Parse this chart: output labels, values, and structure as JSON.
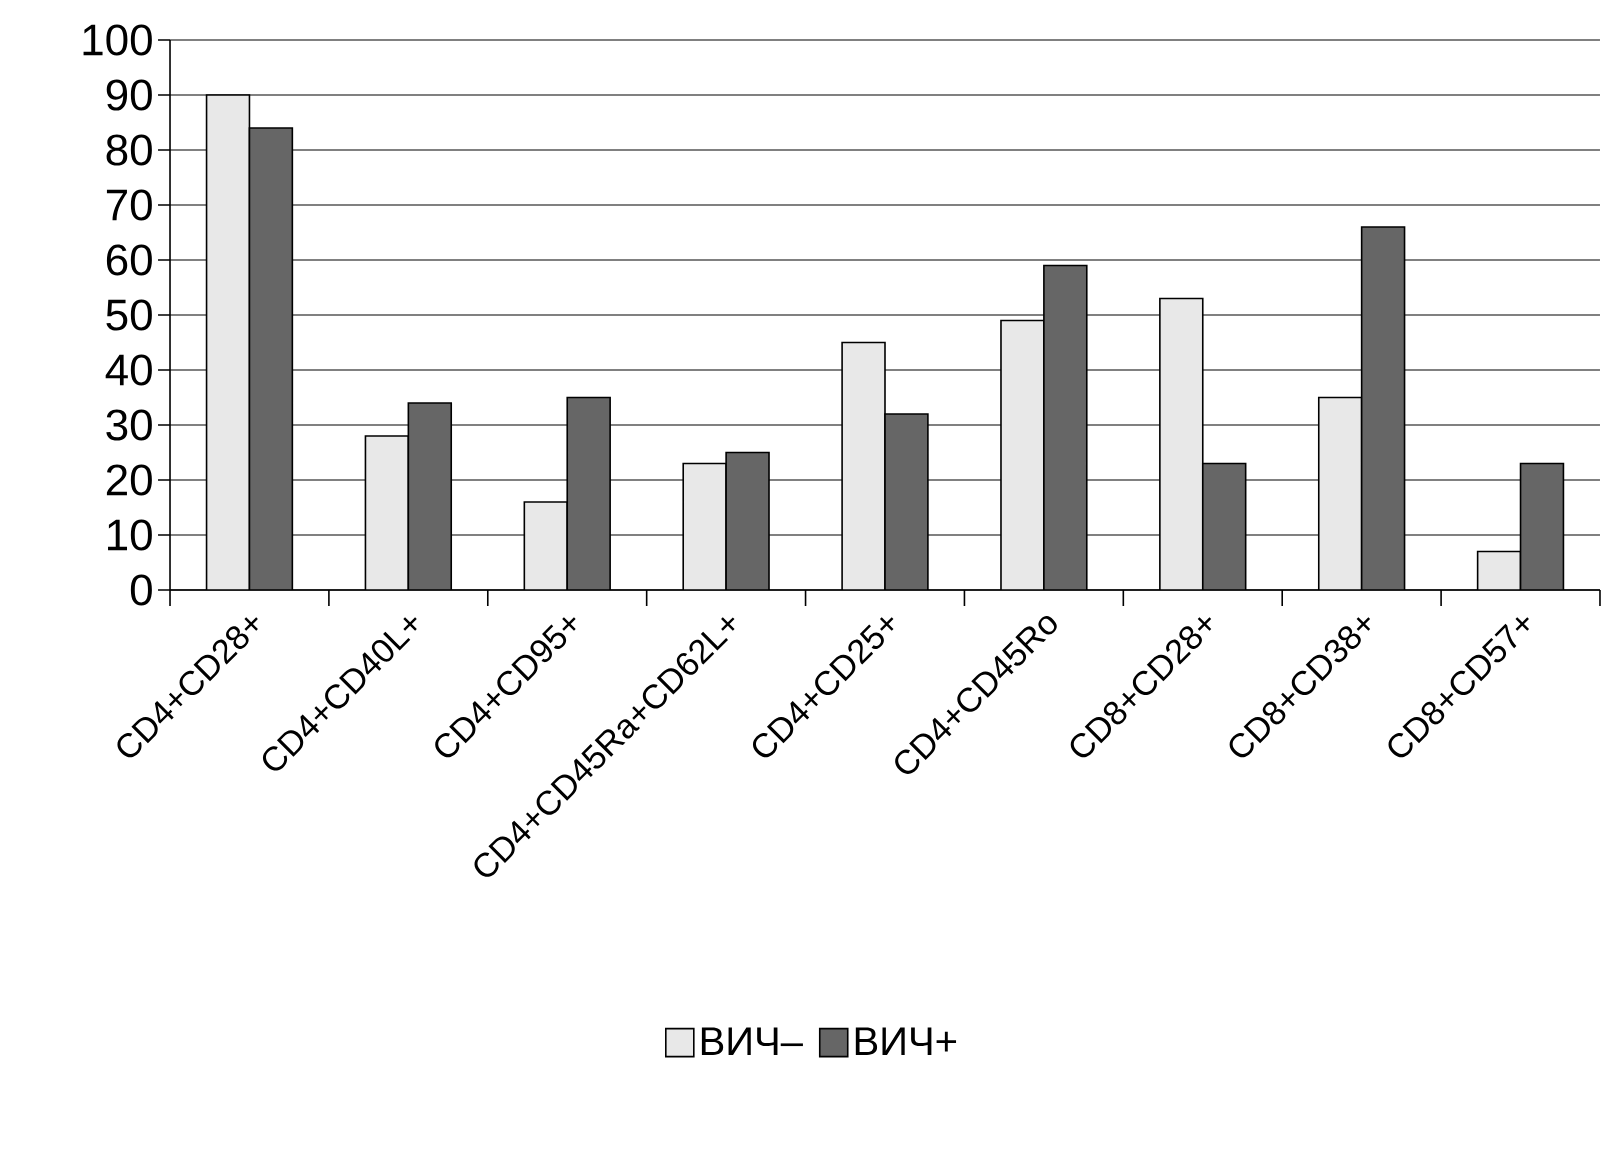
{
  "chart_data": {
    "type": "bar",
    "categories": [
      "CD4+CD28+",
      "CD4+CD40L+",
      "CD4+CD95+",
      "CD4+CD45Ra+CD62L+",
      "CD4+CD25+",
      "CD4+CD45Ro",
      "CD8+CD28+",
      "CD8+CD38+",
      "CD8+CD57+"
    ],
    "series": [
      {
        "name": "ВИЧ–",
        "color": "#e8e8e8",
        "values": [
          90,
          28,
          16,
          23,
          45,
          49,
          53,
          35,
          7
        ]
      },
      {
        "name": "ВИЧ+",
        "color": "#666666",
        "values": [
          84,
          34,
          35,
          25,
          32,
          59,
          23,
          66,
          23
        ]
      }
    ],
    "ylim": [
      0,
      100
    ],
    "yticks": [
      0,
      10,
      20,
      30,
      40,
      50,
      60,
      70,
      80,
      90,
      100
    ],
    "grid": "y",
    "legend": "bottom"
  }
}
